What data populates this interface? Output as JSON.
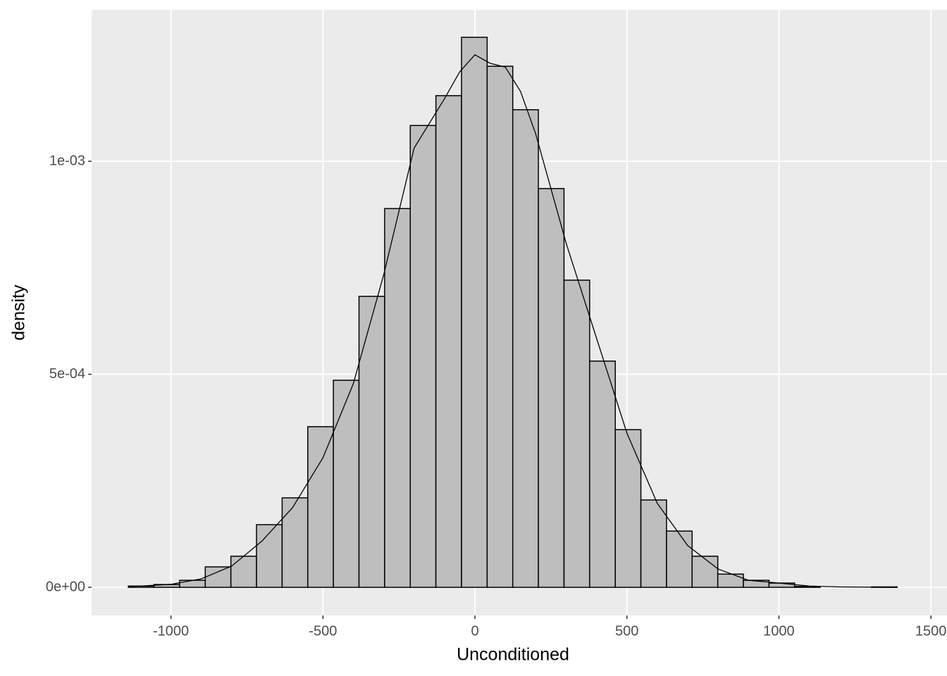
{
  "chart_data": {
    "type": "histogram",
    "x_label": "Unconditioned",
    "y_label": "density",
    "bins": [
      -1140,
      -1055.7,
      -971.4,
      -887.1,
      -802.8,
      -718.5,
      -634.2,
      -549.9,
      -465.6,
      -381.3,
      -297,
      -212.7,
      -128.4,
      -44.1,
      40.2,
      124.5,
      208.8,
      293.1,
      377.4,
      461.7,
      546,
      630.3,
      714.6,
      798.9,
      883.2,
      967.5,
      1051.8,
      1136.1,
      1220.4,
      1304.7,
      1389
    ],
    "values": [
      3e-06,
      6.6e-06,
      1.65e-05,
      4.8e-05,
      7.3e-05,
      0.000147,
      0.00021,
      0.000377,
      0.000486,
      0.000683,
      0.000889,
      0.001084,
      0.001154,
      0.001291,
      0.001223,
      0.001121,
      0.000936,
      0.000721,
      0.000531,
      0.00037,
      0.000205,
      0.000132,
      7.3e-05,
      3.1e-05,
      1.65e-05,
      1e-05,
      2e-06,
      0,
      0,
      1e-06
    ],
    "color": "#bebebe",
    "edge_color": "#000000",
    "density": {
      "color": "#000000",
      "x": [
        -1140,
        -1100,
        -1000,
        -900,
        -800,
        -700,
        -600,
        -500,
        -400,
        -300,
        -200,
        -100,
        -50,
        0,
        50,
        100,
        150,
        200,
        300,
        400,
        500,
        600,
        700,
        800,
        900,
        1000,
        1100,
        1200,
        1389
      ],
      "values": [
        2e-06,
        3e-06,
        7e-06,
        2e-05,
        5e-05,
        0.000109,
        0.000187,
        0.000304,
        0.000478,
        0.000734,
        0.001031,
        0.001147,
        0.00121,
        0.00125,
        0.00123,
        0.001221,
        0.001164,
        0.001064,
        0.000808,
        0.000585,
        0.000362,
        0.000197,
        9.8e-05,
        4.3e-05,
        1.65e-05,
        1e-05,
        3e-06,
        1e-06,
        0
      ]
    },
    "xlim": [
      -1261,
      1553
    ],
    "ylim": [
      -6.6e-05,
      0.0013554
    ],
    "xticks": [
      -1000,
      -500,
      0,
      500,
      1000,
      1500
    ],
    "yticks": [
      {
        "value": 0,
        "label": "0e+00"
      },
      {
        "value": 0.0005,
        "label": "5e-04"
      },
      {
        "value": 0.001,
        "label": "1e-03"
      }
    ],
    "grid": true
  }
}
